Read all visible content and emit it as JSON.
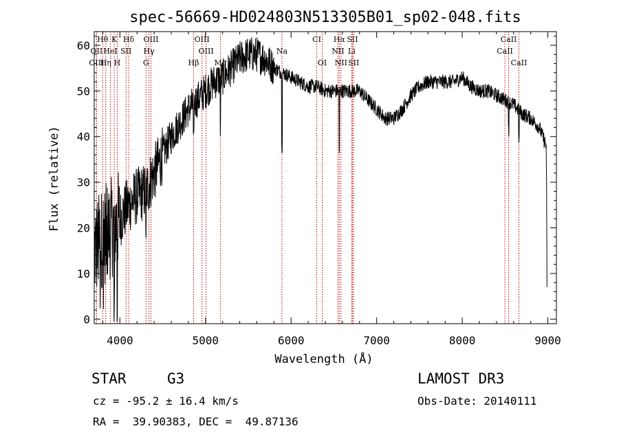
{
  "chart_data": {
    "type": "line",
    "title": "spec-56669-HD024803N513305B01_sp02-048.fits",
    "xlabel": "Wavelength (Å)",
    "ylabel": "Flux (relative)",
    "xlim": [
      3700,
      9100
    ],
    "ylim": [
      -1,
      63
    ],
    "xticks": [
      4000,
      5000,
      6000,
      7000,
      8000,
      9000
    ],
    "yticks": [
      0,
      10,
      20,
      30,
      40,
      50,
      60
    ],
    "series": [
      {
        "name": "spectrum",
        "x": [
          3700,
          3800,
          3900,
          4000,
          4100,
          4200,
          4300,
          4400,
          4500,
          4600,
          4700,
          4800,
          4900,
          5000,
          5100,
          5200,
          5300,
          5400,
          5500,
          5600,
          5700,
          5800,
          5900,
          6000,
          6100,
          6200,
          6300,
          6400,
          6500,
          6600,
          6700,
          6800,
          6900,
          7000,
          7100,
          7200,
          7300,
          7400,
          7500,
          7600,
          7700,
          7800,
          7900,
          8000,
          8100,
          8200,
          8300,
          8400,
          8500,
          8600,
          8700,
          8800,
          8900,
          8980
        ],
        "y": [
          15,
          18,
          20,
          22,
          25,
          27,
          28,
          32,
          36,
          40,
          43,
          46,
          48,
          50,
          52,
          53,
          55,
          57,
          58,
          58,
          57,
          55,
          54,
          53,
          52,
          51,
          51,
          50,
          50,
          50,
          50,
          50,
          48,
          46,
          44,
          44,
          46,
          49,
          51,
          52,
          52,
          52,
          52,
          53,
          51,
          50,
          50,
          49,
          48,
          47,
          45,
          44,
          42,
          38
        ]
      }
    ],
    "spectral_lines": [
      {
        "label": "Hθ",
        "x": 3798,
        "row": 0
      },
      {
        "label": "K",
        "x": 3934,
        "row": 0
      },
      {
        "label": "Hδ",
        "x": 4102,
        "row": 0
      },
      {
        "label": "OIII",
        "x": 4363,
        "row": 0
      },
      {
        "label": "OIII",
        "x": 4959,
        "row": 0
      },
      {
        "label": "CI",
        "x": 6300,
        "row": 0
      },
      {
        "label": "Hα",
        "x": 6563,
        "row": 0
      },
      {
        "label": "SII",
        "x": 6717,
        "row": 0
      },
      {
        "label": "CaII",
        "x": 8542,
        "row": 0
      },
      {
        "label": "OII",
        "x": 3727,
        "row": 1
      },
      {
        "label": "HeI",
        "x": 3889,
        "row": 1
      },
      {
        "label": "SII",
        "x": 4072,
        "row": 1
      },
      {
        "label": "Hγ",
        "x": 4340,
        "row": 1
      },
      {
        "label": "OIII",
        "x": 5007,
        "row": 1
      },
      {
        "label": "Na",
        "x": 5893,
        "row": 1
      },
      {
        "label": "NII",
        "x": 6548,
        "row": 1
      },
      {
        "label": "Li",
        "x": 6708,
        "row": 1
      },
      {
        "label": "CaII",
        "x": 8498,
        "row": 1
      },
      {
        "label": "OIII",
        "x": 3727,
        "row": 2
      },
      {
        "label": "Hη",
        "x": 3835,
        "row": 2
      },
      {
        "label": "H",
        "x": 3969,
        "row": 2
      },
      {
        "label": "G",
        "x": 4305,
        "row": 2
      },
      {
        "label": "Hβ",
        "x": 4861,
        "row": 2
      },
      {
        "label": "Mg",
        "x": 5175,
        "row": 2
      },
      {
        "label": "OI",
        "x": 6364,
        "row": 2
      },
      {
        "label": "NII",
        "x": 6583,
        "row": 2
      },
      {
        "label": "SII",
        "x": 6731,
        "row": 2
      },
      {
        "label": "CaII",
        "x": 8662,
        "row": 2
      }
    ]
  },
  "info": {
    "object_class": "STAR",
    "subclass": "G3",
    "survey": "LAMOST DR3",
    "redshift_line": "cz = -95.2 ± 16.4 km/s",
    "obs_date_line": "Obs-Date: 20140111",
    "coords_line": "RA =  39.90383, DEC =  49.87136"
  }
}
